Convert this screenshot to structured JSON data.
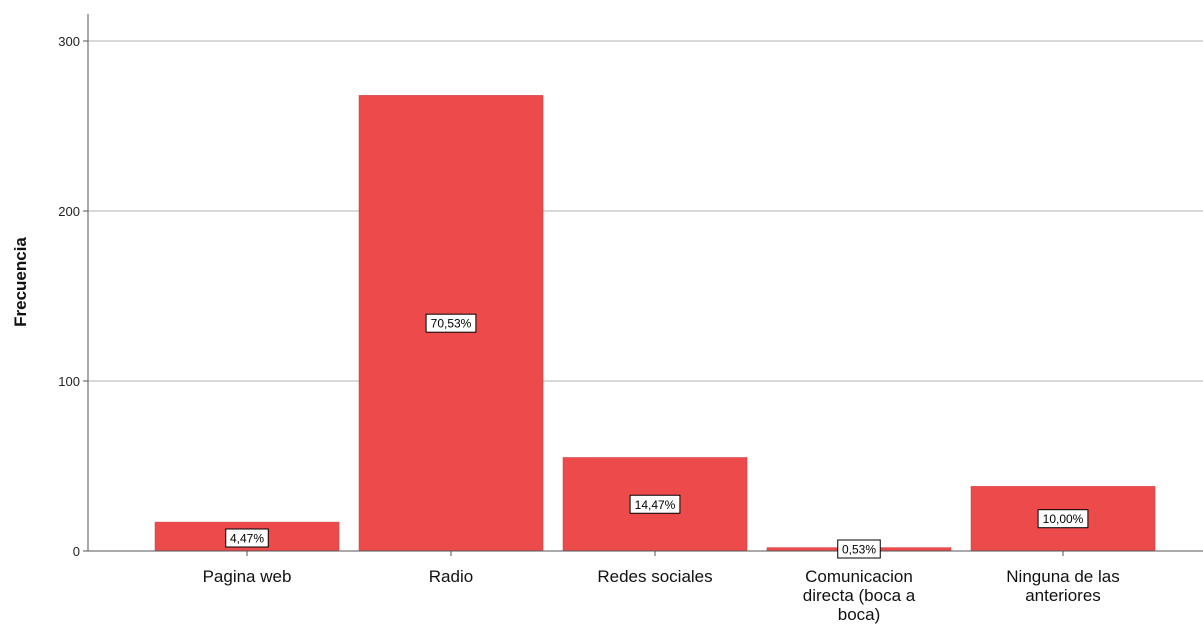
{
  "chart_data": {
    "type": "bar",
    "categories": [
      "Pagina web",
      "Radio",
      "Redes sociales",
      "Comunicacion directa (boca a boca)",
      "Ninguna de las anteriores"
    ],
    "category_lines": [
      [
        "Pagina web"
      ],
      [
        "Radio"
      ],
      [
        "Redes sociales"
      ],
      [
        "Comunicacion",
        "directa (boca a",
        "boca)"
      ],
      [
        "Ninguna de las",
        "anteriores"
      ]
    ],
    "values": [
      17,
      268,
      55,
      2,
      38
    ],
    "data_labels": [
      "4,47%",
      "70,53%",
      "14,47%",
      "0,53%",
      "10,00%"
    ],
    "title": "",
    "xlabel": "",
    "ylabel": "Frecuencia",
    "ylim": [
      0,
      300
    ],
    "yticks": [
      0,
      100,
      200,
      300
    ],
    "grid": true,
    "colors": {
      "bar": "#ed4a4c",
      "bar_edge": "#cf3b3d",
      "grid": "#b3b3b3",
      "axis": "#555555"
    }
  }
}
